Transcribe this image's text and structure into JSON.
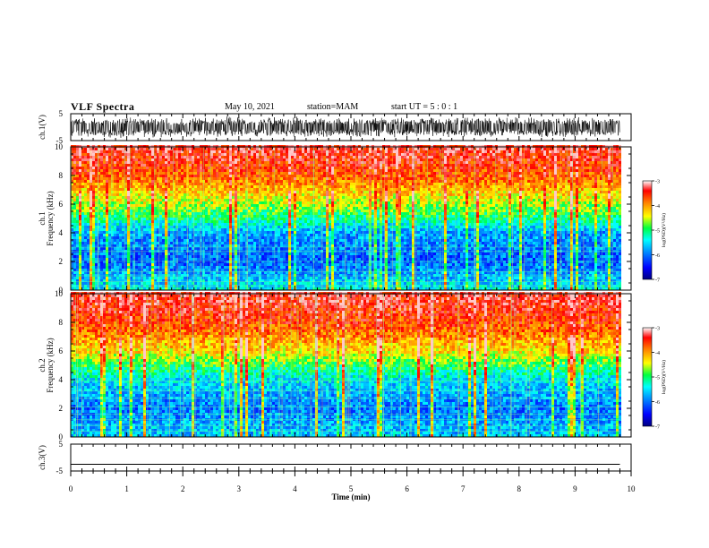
{
  "header": {
    "title": "VLF Spectra",
    "date": "May 10, 2021",
    "station": "station=MAM",
    "start": "start UT = 5 : 0 : 1"
  },
  "colors": {
    "spectrum_low": "#000090",
    "spectrum_mid": "#00ff60",
    "spectrum_high": "#ff0000",
    "trace": "#000000"
  },
  "chart_data": [
    {
      "type": "line",
      "id": "ch1-waveform",
      "ylabel": "ch.1(V)",
      "ylim": [
        -5,
        5
      ],
      "y_ticks": [
        5,
        -5
      ],
      "xlim": [
        0,
        10
      ],
      "description_level": "dense noise waveform, amplitude roughly -4 to 4 V"
    },
    {
      "type": "heatmap",
      "id": "ch1-spectrogram",
      "ylabel_line1": "ch.1",
      "ylabel_line2": "Frequency (kHz)",
      "ylim": [
        0,
        10
      ],
      "y_ticks": [
        0,
        2,
        4,
        6,
        8,
        10
      ],
      "xlim": [
        0,
        9.8
      ],
      "colorbar": {
        "label": "log(PSD)(V²/Hz)",
        "range": [
          -7,
          -3
        ],
        "ticks": [
          -3,
          -4,
          -5,
          -6,
          -7
        ]
      },
      "profile_khz": [
        0,
        2,
        4,
        5,
        6,
        8,
        10
      ],
      "profile_logpsd": [
        -5.4,
        -6.1,
        -5.8,
        -5.1,
        -4.6,
        -3.7,
        -3.3
      ]
    },
    {
      "type": "heatmap",
      "id": "ch2-spectrogram",
      "ylabel_line1": "ch.2",
      "ylabel_line2": "Frequency (kHz)",
      "ylim": [
        0,
        10
      ],
      "y_ticks": [
        0,
        2,
        4,
        6,
        8,
        10
      ],
      "xlim": [
        0,
        9.8
      ],
      "colorbar": {
        "label": "log(PSD)(V²/Hz)",
        "range": [
          -7,
          -3
        ],
        "ticks": [
          -3,
          -4,
          -5,
          -6,
          -7
        ]
      },
      "profile_khz": [
        0,
        2,
        4,
        5,
        6,
        8,
        10
      ],
      "profile_logpsd": [
        -5.6,
        -6.0,
        -5.5,
        -4.9,
        -4.3,
        -3.6,
        -3.3
      ]
    },
    {
      "type": "line",
      "id": "ch3-waveform",
      "ylabel": "ch.3(V)",
      "ylim": [
        -5,
        5
      ],
      "y_ticks": [
        5,
        -5
      ],
      "xlim": [
        0,
        10
      ],
      "constant_value": -2.5,
      "xlabel": "Time (min)",
      "x_ticks": [
        0,
        1,
        2,
        3,
        4,
        5,
        6,
        7,
        8,
        9,
        10
      ]
    }
  ]
}
